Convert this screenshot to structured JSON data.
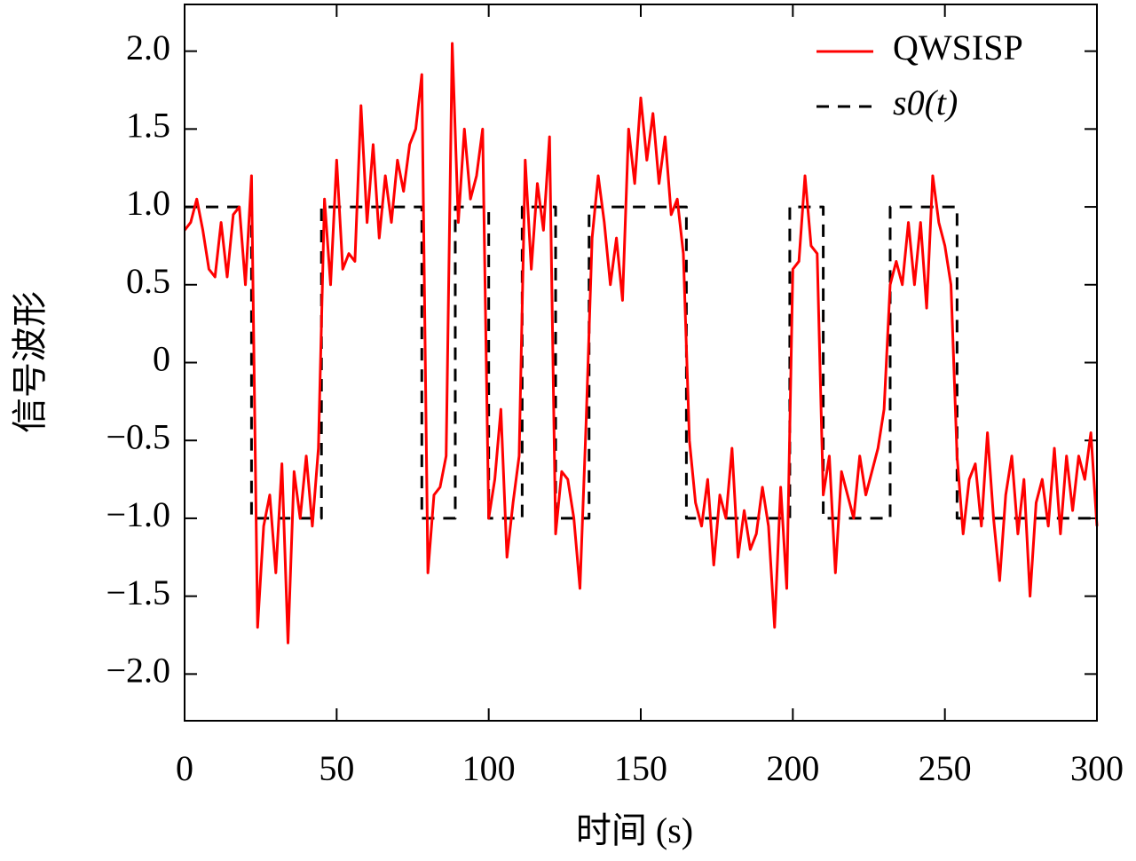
{
  "chart_data": {
    "type": "line",
    "xlabel": "时间 (s)",
    "ylabel": "信号波形",
    "xlim": [
      0,
      300
    ],
    "xticks": [
      0,
      50,
      100,
      150,
      200,
      250,
      300
    ],
    "ylim": [
      -2.3,
      2.3
    ],
    "yticks": [
      {
        "value": -2,
        "label": "−2.0"
      },
      {
        "value": -1.5,
        "label": "−1.5"
      },
      {
        "value": -1,
        "label": "−1.0"
      },
      {
        "value": -0.5,
        "label": "−0.5"
      },
      0,
      0.5,
      {
        "value": 1,
        "label": "1.0"
      },
      1.5,
      {
        "value": 2,
        "label": "2.0"
      }
    ],
    "legend": "upper right",
    "series": [
      {
        "name": "QWSISP",
        "color": "#ff0000",
        "style": "solid",
        "x": [
          0,
          2,
          4,
          6,
          8,
          10,
          12,
          14,
          16,
          18,
          20,
          22,
          24,
          26,
          28,
          30,
          32,
          34,
          36,
          38,
          40,
          42,
          44,
          46,
          48,
          50,
          52,
          54,
          56,
          58,
          60,
          62,
          64,
          66,
          68,
          70,
          72,
          74,
          76,
          78,
          80,
          82,
          84,
          86,
          88,
          90,
          92,
          94,
          96,
          98,
          100,
          102,
          104,
          106,
          108,
          110,
          112,
          114,
          116,
          118,
          120,
          122,
          124,
          126,
          128,
          130,
          132,
          134,
          136,
          138,
          140,
          142,
          144,
          146,
          148,
          150,
          152,
          154,
          156,
          158,
          160,
          162,
          164,
          166,
          168,
          170,
          172,
          174,
          176,
          178,
          180,
          182,
          184,
          186,
          188,
          190,
          192,
          194,
          196,
          198,
          200,
          202,
          204,
          206,
          208,
          210,
          212,
          214,
          216,
          218,
          220,
          222,
          224,
          226,
          228,
          230,
          232,
          234,
          236,
          238,
          240,
          242,
          244,
          246,
          248,
          250,
          252,
          254,
          256,
          258,
          260,
          262,
          264,
          266,
          268,
          270,
          272,
          274,
          276,
          278,
          280,
          282,
          284,
          286,
          288,
          290,
          292,
          294,
          296,
          298,
          300
        ],
        "values": [
          0.85,
          0.9,
          1.05,
          0.85,
          0.6,
          0.55,
          0.9,
          0.55,
          0.95,
          1.0,
          0.5,
          1.2,
          -1.7,
          -1.05,
          -0.85,
          -1.35,
          -0.65,
          -1.8,
          -0.7,
          -1.0,
          -0.6,
          -1.05,
          -0.55,
          1.05,
          0.5,
          1.3,
          0.6,
          0.7,
          0.65,
          1.65,
          0.9,
          1.4,
          0.8,
          1.2,
          0.9,
          1.3,
          1.1,
          1.4,
          1.5,
          1.85,
          -1.35,
          -0.85,
          -0.8,
          -0.6,
          2.05,
          0.9,
          1.5,
          1.05,
          1.2,
          1.5,
          -1.0,
          -0.75,
          -0.3,
          -1.25,
          -0.9,
          -0.6,
          1.3,
          0.6,
          1.15,
          0.85,
          1.45,
          -1.1,
          -0.7,
          -0.75,
          -1.0,
          -1.45,
          -0.4,
          0.8,
          1.2,
          0.9,
          0.5,
          0.8,
          0.4,
          1.5,
          1.15,
          1.7,
          1.3,
          1.6,
          1.15,
          1.45,
          0.95,
          1.05,
          0.7,
          -0.5,
          -0.9,
          -1.05,
          -0.75,
          -1.3,
          -0.85,
          -1.0,
          -0.55,
          -1.25,
          -0.95,
          -1.2,
          -1.1,
          -0.8,
          -1.05,
          -1.7,
          -0.8,
          -1.45,
          0.6,
          0.65,
          1.2,
          0.75,
          0.7,
          -0.85,
          -0.6,
          -1.35,
          -0.7,
          -0.85,
          -1.0,
          -0.6,
          -0.85,
          -0.7,
          -0.55,
          -0.3,
          0.5,
          0.65,
          0.5,
          0.9,
          0.5,
          0.9,
          0.35,
          1.2,
          0.9,
          0.75,
          0.5,
          -0.6,
          -1.1,
          -0.75,
          -0.65,
          -1.05,
          -0.45,
          -1.0,
          -1.4,
          -0.85,
          -0.6,
          -1.1,
          -0.75,
          -1.5,
          -0.9,
          -0.75,
          -1.05,
          -0.55,
          -1.1,
          -0.6,
          -0.95,
          -0.6,
          -0.75,
          -0.45,
          -1.05
        ]
      },
      {
        "name": "s0(t)",
        "color": "#000000",
        "style": "dashed",
        "x": [
          0,
          22,
          22,
          45,
          45,
          78,
          78,
          89,
          89,
          100,
          100,
          111,
          111,
          122,
          122,
          133,
          133,
          165,
          165,
          199,
          199,
          210,
          210,
          232,
          232,
          254,
          254,
          300
        ],
        "values": [
          1,
          1,
          -1,
          -1,
          1,
          1,
          -1,
          -1,
          1,
          1,
          -1,
          -1,
          1,
          1,
          -1,
          -1,
          1,
          1,
          -1,
          -1,
          1,
          1,
          -1,
          -1,
          1,
          1,
          -1,
          -1
        ]
      }
    ]
  }
}
